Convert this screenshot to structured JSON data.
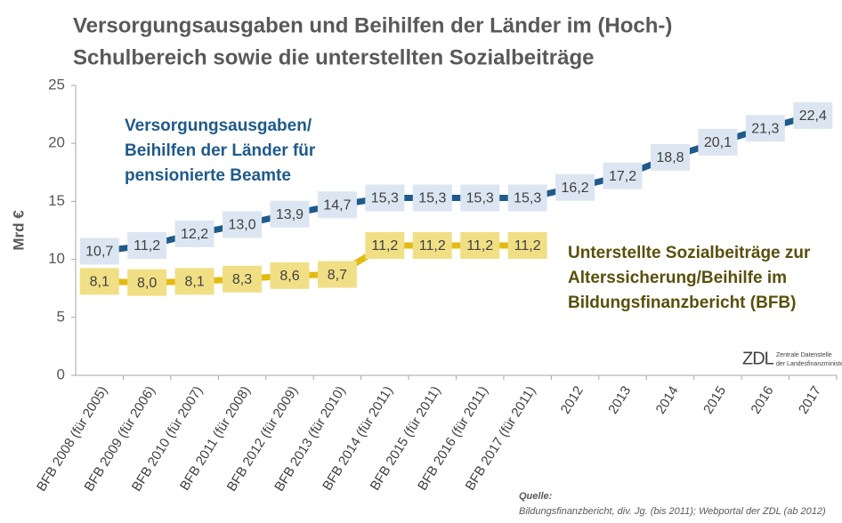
{
  "chart_data": {
    "type": "line",
    "title": [
      "Versorgungsausgaben und Beihilfen der Länder im (Hoch-)",
      "Schulbereich sowie die unterstellten Sozialbeiträge"
    ],
    "y_label": "Mrd €",
    "categories": [
      "BFB 2008 (für 2005)",
      "BFB 2009 (für 2006)",
      "BFB 2010 (für 2007)",
      "BFB 2011 (für 2008)",
      "BFB 2012 (für 2009)",
      "BFB 2013 (für 2010)",
      "BFB 2014 (für 2011)",
      "BFB 2015 (für 2011)",
      "BFB 2016 (für 2011)",
      "BFB 2017 (für 2011)",
      "2012",
      "2013",
      "2014",
      "2015",
      "2016",
      "2017"
    ],
    "series": [
      {
        "name": [
          "Versorgungsausgaben/",
          "Beihilfen der Länder für",
          "pensionierte Beamte"
        ],
        "color": "#1f5a8a",
        "box_color": "#dce6f2",
        "values": [
          10.7,
          11.2,
          12.2,
          13.0,
          13.9,
          14.7,
          15.3,
          15.3,
          15.3,
          15.3,
          16.2,
          17.2,
          18.8,
          20.1,
          21.3,
          22.4
        ],
        "value_labels": [
          "10,7",
          "11,2",
          "12,2",
          "13,0",
          "13,9",
          "14,7",
          "15,3",
          "15,3",
          "15,3",
          "15,3",
          "16,2",
          "17,2",
          "18,8",
          "20,1",
          "21,3",
          "22,4"
        ]
      },
      {
        "name": [
          "Unterstellte Sozialbeiträge zur",
          "Alterssicherung/Beihilfe im",
          "Bildungsfinanzbericht (BFB)"
        ],
        "color": "#e3bb12",
        "box_color": "#f1df86",
        "values": [
          8.1,
          8.0,
          8.1,
          8.3,
          8.6,
          8.7,
          11.2,
          11.2,
          11.2,
          11.2,
          null,
          null,
          null,
          null,
          null,
          null
        ],
        "value_labels": [
          "8,1",
          "8,0",
          "8,1",
          "8,3",
          "8,6",
          "8,7",
          "11,2",
          "11,2",
          "11,2",
          "11,2",
          null,
          null,
          null,
          null,
          null,
          null
        ]
      }
    ],
    "ylim": [
      0,
      25
    ],
    "yticks": [
      0,
      5,
      10,
      15,
      20,
      25
    ],
    "grid": false,
    "logo": [
      "ZDL",
      "Zentrale Datenstelle",
      "der Landesfinanzminister"
    ],
    "source": [
      "Quelle:",
      "Bildungsfinanzbericht, div. Jg. (bis 2011); Webportal der ZDL (ab 2012)"
    ]
  }
}
